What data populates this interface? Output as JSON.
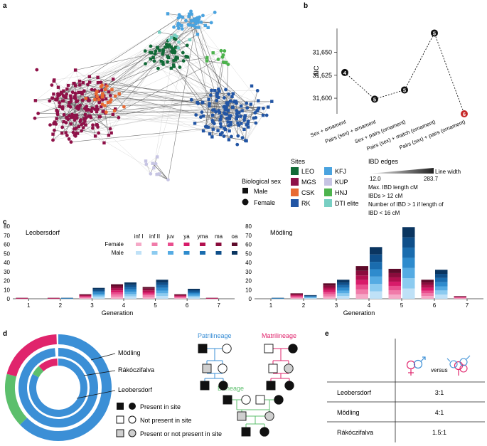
{
  "panel_labels": {
    "a": "a",
    "b": "b",
    "c": "c",
    "d": "d",
    "e": "e"
  },
  "panel_a": {
    "legend_bio_sex": {
      "title": "Biological sex",
      "male": "Male",
      "female": "Female"
    },
    "legend_sites": {
      "title": "Sites",
      "items": [
        {
          "code": "LEO",
          "color": "#116a37"
        },
        {
          "code": "MGS",
          "color": "#8e1148"
        },
        {
          "code": "CSK",
          "color": "#e86a33"
        },
        {
          "code": "RK",
          "color": "#2255a4"
        },
        {
          "code": "KFJ",
          "color": "#4aa3df"
        },
        {
          "code": "KUP",
          "color": "#c6c4e3"
        },
        {
          "code": "HNJ",
          "color": "#4db34d"
        },
        {
          "code": "DTI elite",
          "color": "#78cfc3"
        }
      ]
    },
    "legend_ibd": {
      "title": "IBD edges",
      "min": "12.0",
      "max": "283.7",
      "width_label": "Line width",
      "note1": "Max. IBD length cM",
      "note2": "IBDs > 12 cM",
      "note3a": "Number of IBD > 1 if length of",
      "note3b": "IBD < 16 cM"
    }
  },
  "chart_data": [
    {
      "type": "line",
      "panel": "b",
      "ylabel": "AIC",
      "categories": [
        "Sex + ornament",
        "Pairs (sex) + ornament",
        "Sex + pairs (ornament)",
        "Pairs (sex) + match (ornament)",
        "Pairs (sex) + pairs (ornament)"
      ],
      "values": [
        31628,
        31599,
        31609,
        31671,
        31583
      ],
      "point_labels": [
        "4",
        "5",
        "5",
        "5",
        "6"
      ],
      "yticks": [
        "31,600",
        "31,625",
        "31,650"
      ],
      "ylim": [
        31583,
        31676
      ]
    },
    {
      "type": "bar",
      "panel": "c",
      "title_left": "Leobersdorf",
      "title_right": "Mödling",
      "xlabel": "Generation",
      "categories": [
        "1",
        "2",
        "3",
        "4",
        "5",
        "6",
        "7"
      ],
      "yticks": [
        "0",
        "10",
        "20",
        "30",
        "40",
        "50",
        "60",
        "70",
        "80"
      ],
      "ylim": [
        0,
        80
      ],
      "age_classes": [
        "inf I",
        "inf II",
        "juv",
        "ya",
        "yma",
        "ma",
        "oa"
      ],
      "female_label": "Female",
      "male_label": "Male",
      "female_colors": [
        "#f5a9c7",
        "#f07ba9",
        "#e94e8e",
        "#d81b6a",
        "#b2104f",
        "#8a0c3c",
        "#5e0a2a"
      ],
      "male_colors": [
        "#bfe1f7",
        "#8ccbf0",
        "#55abe3",
        "#2e8bcd",
        "#1a6cae",
        "#0f4f8a",
        "#0a3560"
      ],
      "leobersdorf": {
        "female": [
          1,
          1,
          5,
          16,
          13,
          5,
          1
        ],
        "male": [
          0,
          1,
          12,
          18,
          21,
          11,
          0
        ]
      },
      "moedling": {
        "female": [
          0,
          6,
          17,
          36,
          33,
          21,
          3
        ],
        "male": [
          1,
          4,
          21,
          57,
          79,
          32,
          0
        ]
      }
    }
  ],
  "panel_d": {
    "ring_labels": [
      "Mödling",
      "Rákóczifalva",
      "Leobersdorf"
    ],
    "patrilineage": "Patrilineage",
    "matrilineage": "Matrilineage",
    "bilineage": "Bilineage",
    "present": "Present in site",
    "not_present": "Not present in site",
    "either": "Present or not present in site",
    "colors": {
      "patri": "#3b8fd6",
      "matri": "#e0246c",
      "bi": "#5cbf6c"
    }
  },
  "panel_e": {
    "versus": "versus",
    "rows": [
      {
        "site": "Leobersdorf",
        "ratio": "3:1"
      },
      {
        "site": "Mödling",
        "ratio": "4:1"
      },
      {
        "site": "Rákóczifalva",
        "ratio": "1.5:1"
      }
    ]
  }
}
